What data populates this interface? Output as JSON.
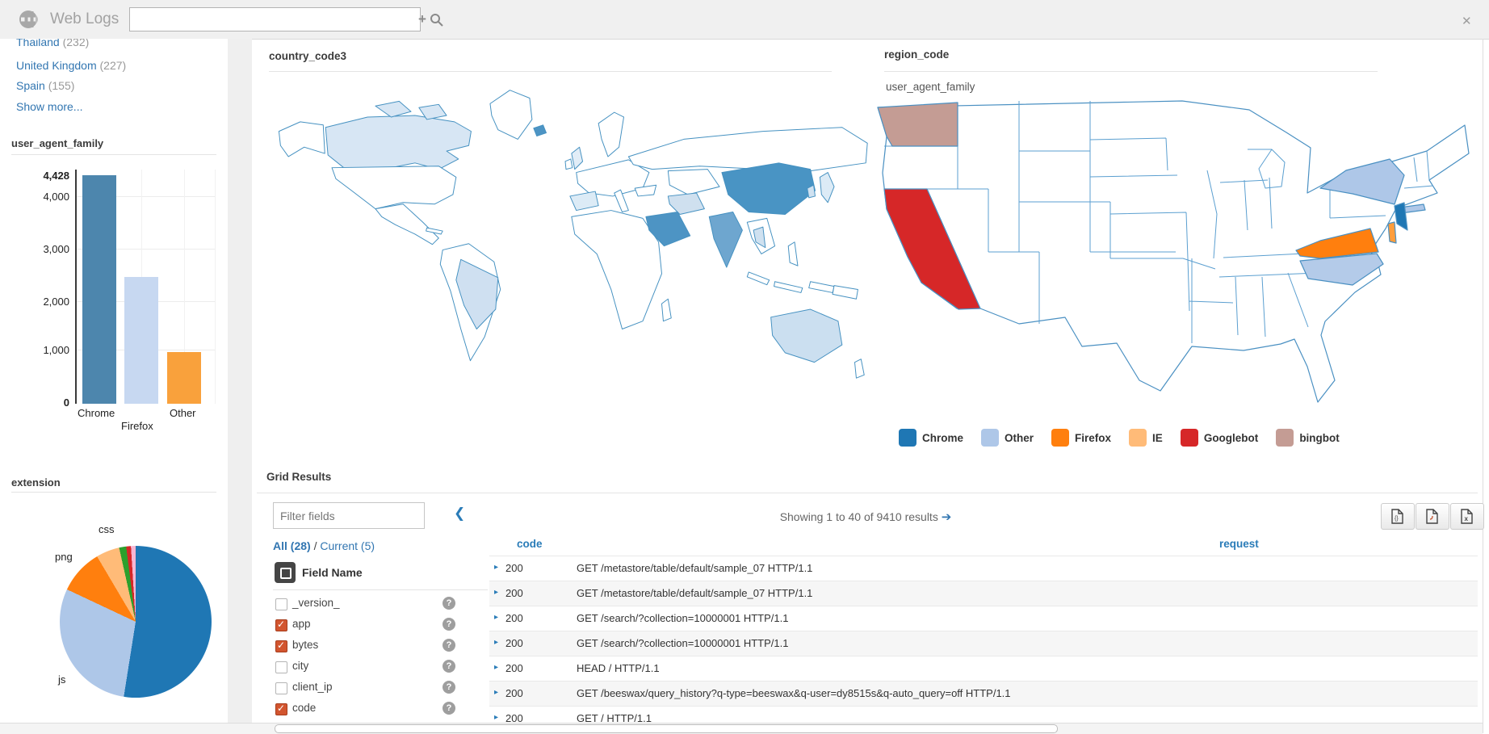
{
  "topbar": {
    "app_title": "Web Logs",
    "search_value": "",
    "search_placeholder": ""
  },
  "icons": {
    "expander": "▸",
    "chevron_left": "❮",
    "arrow_right": "➔",
    "plus": "+",
    "close": "✕",
    "help": "?"
  },
  "sidebar": {
    "facets": [
      {
        "label": "Thailand",
        "count": "(232)"
      },
      {
        "label": "United Kingdom",
        "count": "(227)"
      },
      {
        "label": "Spain",
        "count": "(155)"
      }
    ],
    "show_more": "Show more...",
    "bar_section_title": "user_agent_family",
    "pie_section_title": "extension"
  },
  "chart_data": [
    {
      "type": "bar",
      "title": "user_agent_family",
      "categories": [
        "Chrome",
        "Firefox",
        "Other"
      ],
      "values": [
        4428,
        2450,
        1000
      ],
      "colors": [
        "#4d86ad",
        "#c7d8f1",
        "#f9a13c"
      ],
      "xlabel": "",
      "ylabel": "",
      "ylim": [
        0,
        4428
      ],
      "yticks": [
        "4,428",
        "4,000",
        "3,000",
        "2,000",
        "1,000",
        "0"
      ],
      "grid": true,
      "legend_position": "none"
    },
    {
      "type": "pie",
      "title": "extension",
      "slices": [
        {
          "label": "",
          "value": 52.5,
          "color": "#1f77b4"
        },
        {
          "label": "js",
          "value": 29.5,
          "color": "#aec7e8"
        },
        {
          "label": "png",
          "value": 9.5,
          "color": "#ff7f0e"
        },
        {
          "label": "css",
          "value": 5,
          "color": "#ffbb78"
        },
        {
          "label": "",
          "value": 1.5,
          "color": "#2ca02c"
        },
        {
          "label": "",
          "value": 1,
          "color": "#d62728"
        },
        {
          "label": "",
          "value": 1,
          "color": "#f7b6d2"
        }
      ],
      "legend_position": "none"
    }
  ],
  "maps": {
    "world": {
      "title": "country_code3",
      "highlights": [
        {
          "name": "Canada",
          "color": "#d7e6f4"
        },
        {
          "name": "Brazil",
          "color": "#cfe0f1"
        },
        {
          "name": "Spain",
          "color": "#dcebf6"
        },
        {
          "name": "United Kingdom",
          "color": "#e2edf7"
        },
        {
          "name": "Iceland",
          "color": "#4d94c4"
        },
        {
          "name": "Saudi Arabia",
          "color": "#4d94c4"
        },
        {
          "name": "Iran",
          "color": "#cfe0ef"
        },
        {
          "name": "India",
          "color": "#6ea6cf"
        },
        {
          "name": "China",
          "color": "#4994c4"
        },
        {
          "name": "Thailand",
          "color": "#cfe1f0"
        },
        {
          "name": "Japan",
          "color": "#dcebf6"
        },
        {
          "name": "South Korea",
          "color": "#cfe1f0"
        },
        {
          "name": "Australia",
          "color": "#cbdff0"
        }
      ]
    },
    "us": {
      "title": "region_code",
      "subtitle": "user_agent_family",
      "highlights": [
        {
          "state": "Washington",
          "agent": "bingbot",
          "color": "#c49c94"
        },
        {
          "state": "California",
          "agent": "Googlebot",
          "color": "#d62728"
        },
        {
          "state": "New York",
          "agent": "Other",
          "color": "#aec7e8"
        },
        {
          "state": "New Jersey",
          "agent": "Chrome",
          "color": "#1f77b4"
        },
        {
          "state": "Virginia",
          "agent": "Firefox",
          "color": "#ff7f0e"
        },
        {
          "state": "North Carolina",
          "agent": "Other",
          "color": "#b4cbe9"
        },
        {
          "state": "Delaware",
          "agent": "Firefox",
          "color": "#ff9d3c"
        }
      ]
    },
    "legend": [
      {
        "label": "Chrome",
        "color": "#1f77b4"
      },
      {
        "label": "Other",
        "color": "#aec7e8"
      },
      {
        "label": "Firefox",
        "color": "#ff7f0e"
      },
      {
        "label": "IE",
        "color": "#ffbb78"
      },
      {
        "label": "Googlebot",
        "color": "#d62728"
      },
      {
        "label": "bingbot",
        "color": "#c49c94"
      }
    ]
  },
  "grid": {
    "title": "Grid Results",
    "filter_placeholder": "Filter fields",
    "all_label": "All (28)",
    "slash": "/",
    "current_label": "Current (5)",
    "field_header": "Field Name",
    "fields": [
      {
        "name": "_version_",
        "checked": false
      },
      {
        "name": "app",
        "checked": true
      },
      {
        "name": "bytes",
        "checked": true
      },
      {
        "name": "city",
        "checked": false
      },
      {
        "name": "client_ip",
        "checked": false
      },
      {
        "name": "code",
        "checked": true
      }
    ],
    "showing_text": "Showing 1 to 40 of 9410 results",
    "columns": [
      "code",
      "request"
    ],
    "rows": [
      {
        "code": "200",
        "request": "GET /metastore/table/default/sample_07 HTTP/1.1"
      },
      {
        "code": "200",
        "request": "GET /metastore/table/default/sample_07 HTTP/1.1"
      },
      {
        "code": "200",
        "request": "GET /search/?collection=10000001 HTTP/1.1"
      },
      {
        "code": "200",
        "request": "GET /search/?collection=10000001 HTTP/1.1"
      },
      {
        "code": "200",
        "request": "HEAD / HTTP/1.1"
      },
      {
        "code": "200",
        "request": "GET /beeswax/query_history?q-type=beeswax&q-user=dy8515s&q-auto_query=off HTTP/1.1"
      },
      {
        "code": "200",
        "request": "GET / HTTP/1.1"
      }
    ]
  }
}
